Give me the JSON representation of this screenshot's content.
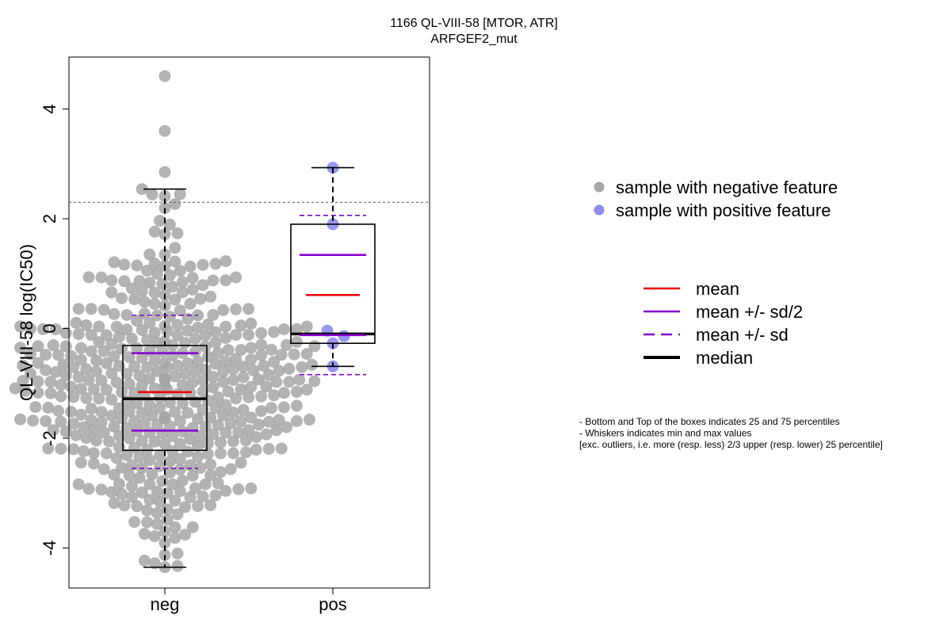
{
  "chart_data": {
    "type": "box",
    "title": "1166 QL-VIII-58 [MTOR, ATR]",
    "subtitle": "ARFGEF2_mut",
    "ylabel": "QL-VIII-58 log(IC50)",
    "ylim": [
      -4.7,
      4.95
    ],
    "yticks": [
      -4,
      -2,
      0,
      2,
      4
    ],
    "yticklabels": [
      "-4",
      "-2",
      "0",
      "2",
      "4"
    ],
    "categories": [
      "neg",
      "pos"
    ],
    "threshold": 2.3,
    "groups": [
      {
        "name": "neg",
        "color": "#a6a6a6",
        "n_points": 470,
        "q1": -2.22,
        "median": -1.28,
        "q3": -0.31,
        "whisker_low": -4.35,
        "whisker_high": 2.54,
        "mean": -1.16,
        "mean_minus_half_sd": -1.86,
        "mean_plus_half_sd": -0.45,
        "mean_minus_sd": -2.55,
        "mean_plus_sd": 0.24,
        "outliers": [
          2.85,
          3.6,
          4.6
        ]
      },
      {
        "name": "pos",
        "color": "#8c8cf2",
        "points": [
          2.93,
          1.9,
          -0.04,
          -0.14,
          -0.27,
          -0.69
        ],
        "q1": -0.27,
        "median": -0.1,
        "q3": 1.9,
        "whisker_low": -0.69,
        "whisker_high": 2.93,
        "mean": 0.61,
        "mean_minus_half_sd": -0.12,
        "mean_plus_half_sd": 1.34,
        "mean_minus_sd": -0.84,
        "mean_plus_sd": 2.06,
        "outliers": []
      }
    ],
    "point_legend": [
      {
        "label": "sample with negative feature",
        "color": "#a6a6a6"
      },
      {
        "label": "sample with positive feature",
        "color": "#8c8cf2"
      }
    ],
    "line_legend": [
      {
        "label": "mean",
        "color": "#ee0000",
        "style": "solid"
      },
      {
        "label": "mean +/- sd/2",
        "color": "#8800cc",
        "style": "solid"
      },
      {
        "label": "mean +/- sd",
        "color": "#8800cc",
        "style": "dashed"
      },
      {
        "label": "median",
        "color": "#000000",
        "style": "solid-thick"
      }
    ],
    "notes": [
      "- Bottom and Top of the boxes indicates 25 and 75 percentiles",
      "- Whiskers indicates min and max values",
      "[exc. outliers, i.e. more (resp. less) 2/3 upper (resp. lower) 25 percentile]"
    ]
  }
}
